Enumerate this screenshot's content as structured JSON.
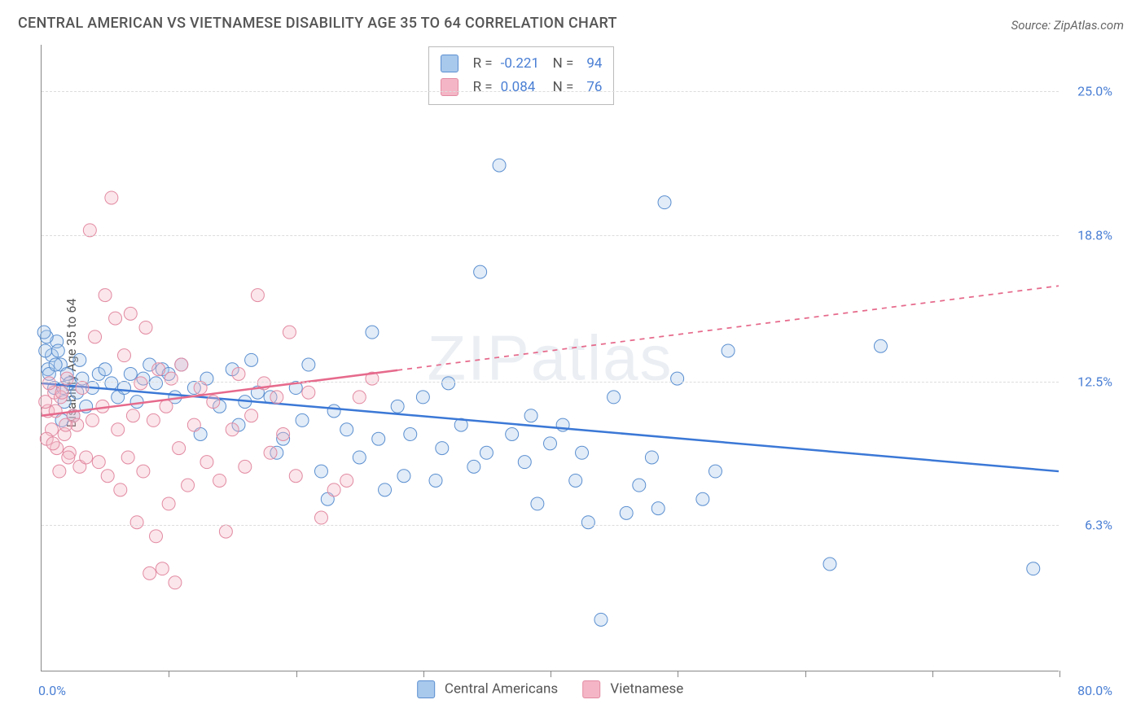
{
  "title": "CENTRAL AMERICAN VS VIETNAMESE DISABILITY AGE 35 TO 64 CORRELATION CHART",
  "source": "Source: ZipAtlas.com",
  "ylabel": "Disability Age 35 to 64",
  "watermark": "ZIPatlas",
  "chart": {
    "type": "scatter",
    "xlim": [
      0,
      80
    ],
    "ylim": [
      0,
      27
    ],
    "x_origin_label": "0.0%",
    "x_max_label": "80.0%",
    "x_ticks": [
      0,
      10,
      20,
      30,
      40,
      50,
      60,
      70,
      80
    ],
    "y_ticks": [
      {
        "value": 6.3,
        "label": "6.3%"
      },
      {
        "value": 12.5,
        "label": "12.5%"
      },
      {
        "value": 18.8,
        "label": "18.8%"
      },
      {
        "value": 25.0,
        "label": "25.0%"
      }
    ],
    "grid_color": "#dddddd",
    "axis_color": "#888888",
    "tick_label_color": "#4a7fd4",
    "background_color": "#ffffff",
    "point_radius": 8,
    "point_stroke_width": 1,
    "point_fill_opacity": 0.35,
    "trend_line_width": 2.5,
    "series": [
      {
        "name": "Central Americans",
        "legend_label": "Central Americans",
        "fill": "#a8c8ec",
        "stroke": "#5b8fd0",
        "r_value": "-0.221",
        "n_value": "94",
        "trend": {
          "x1": 0,
          "y1": 12.4,
          "x2": 80,
          "y2": 8.6,
          "solid_until_x": 80,
          "color": "#3b78d6"
        },
        "points": [
          [
            0.5,
            13.0
          ],
          [
            0.8,
            13.6
          ],
          [
            1.0,
            12.2
          ],
          [
            1.2,
            14.2
          ],
          [
            1.5,
            13.2
          ],
          [
            1.6,
            10.8
          ],
          [
            1.8,
            11.6
          ],
          [
            2.0,
            12.8
          ],
          [
            2.2,
            12.4
          ],
          [
            2.5,
            11.0
          ],
          [
            2.8,
            12.0
          ],
          [
            3.0,
            13.4
          ],
          [
            3.2,
            12.6
          ],
          [
            3.5,
            11.4
          ],
          [
            4.0,
            12.2
          ],
          [
            4.5,
            12.8
          ],
          [
            5.0,
            13.0
          ],
          [
            5.5,
            12.4
          ],
          [
            6.0,
            11.8
          ],
          [
            6.5,
            12.2
          ],
          [
            7.0,
            12.8
          ],
          [
            7.5,
            11.6
          ],
          [
            8.0,
            12.6
          ],
          [
            8.5,
            13.2
          ],
          [
            9.0,
            12.4
          ],
          [
            9.5,
            13.0
          ],
          [
            10.0,
            12.8
          ],
          [
            10.5,
            11.8
          ],
          [
            11.0,
            13.2
          ],
          [
            12.0,
            12.2
          ],
          [
            12.5,
            10.2
          ],
          [
            13.0,
            12.6
          ],
          [
            14.0,
            11.4
          ],
          [
            15.0,
            13.0
          ],
          [
            15.5,
            10.6
          ],
          [
            16.0,
            11.6
          ],
          [
            16.5,
            13.4
          ],
          [
            17.0,
            12.0
          ],
          [
            18.0,
            11.8
          ],
          [
            18.5,
            9.4
          ],
          [
            19.0,
            10.0
          ],
          [
            20.0,
            12.2
          ],
          [
            20.5,
            10.8
          ],
          [
            21.0,
            13.2
          ],
          [
            22.0,
            8.6
          ],
          [
            22.5,
            7.4
          ],
          [
            23.0,
            11.2
          ],
          [
            24.0,
            10.4
          ],
          [
            25.0,
            9.2
          ],
          [
            26.0,
            14.6
          ],
          [
            26.5,
            10.0
          ],
          [
            27.0,
            7.8
          ],
          [
            28.0,
            11.4
          ],
          [
            28.5,
            8.4
          ],
          [
            29.0,
            10.2
          ],
          [
            30.0,
            11.8
          ],
          [
            31.0,
            8.2
          ],
          [
            31.5,
            9.6
          ],
          [
            32.0,
            12.4
          ],
          [
            33.0,
            10.6
          ],
          [
            34.0,
            8.8
          ],
          [
            34.5,
            17.2
          ],
          [
            35.0,
            9.4
          ],
          [
            36.0,
            21.8
          ],
          [
            37.0,
            10.2
          ],
          [
            38.0,
            9.0
          ],
          [
            38.5,
            11.0
          ],
          [
            39.0,
            7.2
          ],
          [
            40.0,
            9.8
          ],
          [
            41.0,
            10.6
          ],
          [
            42.0,
            8.2
          ],
          [
            42.5,
            9.4
          ],
          [
            43.0,
            6.4
          ],
          [
            44.0,
            2.2
          ],
          [
            45.0,
            11.8
          ],
          [
            46.0,
            6.8
          ],
          [
            47.0,
            8.0
          ],
          [
            48.0,
            9.2
          ],
          [
            48.5,
            7.0
          ],
          [
            49.0,
            20.2
          ],
          [
            50.0,
            12.6
          ],
          [
            52.0,
            7.4
          ],
          [
            53.0,
            8.6
          ],
          [
            54.0,
            13.8
          ],
          [
            62.0,
            4.6
          ],
          [
            66.0,
            14.0
          ],
          [
            78.0,
            4.4
          ],
          [
            0.3,
            13.8
          ],
          [
            0.4,
            14.4
          ],
          [
            0.6,
            12.8
          ],
          [
            1.1,
            13.2
          ],
          [
            1.3,
            13.8
          ],
          [
            1.7,
            12.2
          ],
          [
            0.2,
            14.6
          ]
        ]
      },
      {
        "name": "Vietnamese",
        "legend_label": "Vietnamese",
        "fill": "#f4b6c6",
        "stroke": "#e28aa2",
        "r_value": "0.084",
        "n_value": "76",
        "trend": {
          "x1": 0,
          "y1": 11.0,
          "x2": 80,
          "y2": 16.6,
          "solid_until_x": 28,
          "color": "#e66a8c"
        },
        "points": [
          [
            0.5,
            11.2
          ],
          [
            0.8,
            10.4
          ],
          [
            1.0,
            12.0
          ],
          [
            1.2,
            9.6
          ],
          [
            1.5,
            11.8
          ],
          [
            1.8,
            10.2
          ],
          [
            2.0,
            12.6
          ],
          [
            2.2,
            9.4
          ],
          [
            2.5,
            11.0
          ],
          [
            2.8,
            10.6
          ],
          [
            3.0,
            8.8
          ],
          [
            3.2,
            12.2
          ],
          [
            3.5,
            9.2
          ],
          [
            3.8,
            19.0
          ],
          [
            4.0,
            10.8
          ],
          [
            4.2,
            14.4
          ],
          [
            4.5,
            9.0
          ],
          [
            4.8,
            11.4
          ],
          [
            5.0,
            16.2
          ],
          [
            5.2,
            8.4
          ],
          [
            5.5,
            20.4
          ],
          [
            5.8,
            15.2
          ],
          [
            6.0,
            10.4
          ],
          [
            6.2,
            7.8
          ],
          [
            6.5,
            13.6
          ],
          [
            6.8,
            9.2
          ],
          [
            7.0,
            15.4
          ],
          [
            7.2,
            11.0
          ],
          [
            7.5,
            6.4
          ],
          [
            7.8,
            12.4
          ],
          [
            8.0,
            8.6
          ],
          [
            8.2,
            14.8
          ],
          [
            8.5,
            4.2
          ],
          [
            8.8,
            10.8
          ],
          [
            9.0,
            5.8
          ],
          [
            9.2,
            13.0
          ],
          [
            9.5,
            4.4
          ],
          [
            9.8,
            11.4
          ],
          [
            10.0,
            7.2
          ],
          [
            10.2,
            12.6
          ],
          [
            10.5,
            3.8
          ],
          [
            10.8,
            9.6
          ],
          [
            11.0,
            13.2
          ],
          [
            11.5,
            8.0
          ],
          [
            12.0,
            10.6
          ],
          [
            12.5,
            12.2
          ],
          [
            13.0,
            9.0
          ],
          [
            13.5,
            11.6
          ],
          [
            14.0,
            8.2
          ],
          [
            14.5,
            6.0
          ],
          [
            15.0,
            10.4
          ],
          [
            15.5,
            12.8
          ],
          [
            16.0,
            8.8
          ],
          [
            16.5,
            11.0
          ],
          [
            17.0,
            16.2
          ],
          [
            17.5,
            12.4
          ],
          [
            18.0,
            9.4
          ],
          [
            18.5,
            11.8
          ],
          [
            19.0,
            10.2
          ],
          [
            19.5,
            14.6
          ],
          [
            20.0,
            8.4
          ],
          [
            21.0,
            12.0
          ],
          [
            22.0,
            6.6
          ],
          [
            23.0,
            7.8
          ],
          [
            24.0,
            8.2
          ],
          [
            25.0,
            11.8
          ],
          [
            26.0,
            12.6
          ],
          [
            0.3,
            11.6
          ],
          [
            0.4,
            10.0
          ],
          [
            0.6,
            12.4
          ],
          [
            0.9,
            9.8
          ],
          [
            1.1,
            11.2
          ],
          [
            1.4,
            8.6
          ],
          [
            1.6,
            12.0
          ],
          [
            1.9,
            10.6
          ],
          [
            2.1,
            9.2
          ]
        ]
      }
    ]
  },
  "legend": {
    "r_prefix": "R =",
    "n_prefix": "N ="
  }
}
